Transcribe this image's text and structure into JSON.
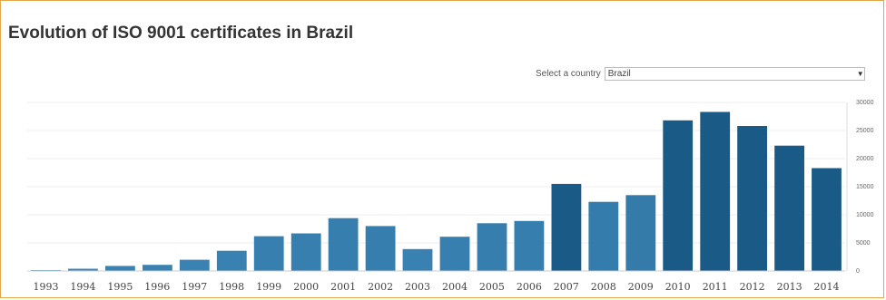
{
  "page": {
    "title": "Evolution of ISO 9001 certificates in Brazil"
  },
  "country_select": {
    "label": "Select a country",
    "selected": "Brazil",
    "arrow_icon": "dropdown-arrow-icon"
  },
  "colors": {
    "bar_light": "#3a83b3",
    "bar_dark": "#1a5a86",
    "frame_border": "#e0a84a"
  },
  "chart_data": {
    "type": "bar",
    "categories": [
      "1993",
      "1994",
      "1995",
      "1996",
      "1997",
      "1998",
      "1999",
      "2000",
      "2001",
      "2002",
      "2003",
      "2004",
      "2005",
      "2006",
      "2007",
      "2008",
      "2009",
      "2010",
      "2011",
      "2012",
      "2013",
      "2014"
    ],
    "values": [
      150,
      400,
      900,
      1100,
      2000,
      3600,
      6200,
      6700,
      9400,
      8000,
      3900,
      6100,
      8500,
      8900,
      15500,
      12300,
      13500,
      26800,
      28300,
      25800,
      22300,
      18300
    ],
    "title": "",
    "xlabel": "",
    "ylabel": "",
    "ylim": [
      0,
      30000
    ],
    "yticks": [
      "0",
      "5000",
      "10000",
      "15000",
      "20000",
      "25000",
      "30000"
    ],
    "grid": true,
    "y_axis_position": "right"
  }
}
